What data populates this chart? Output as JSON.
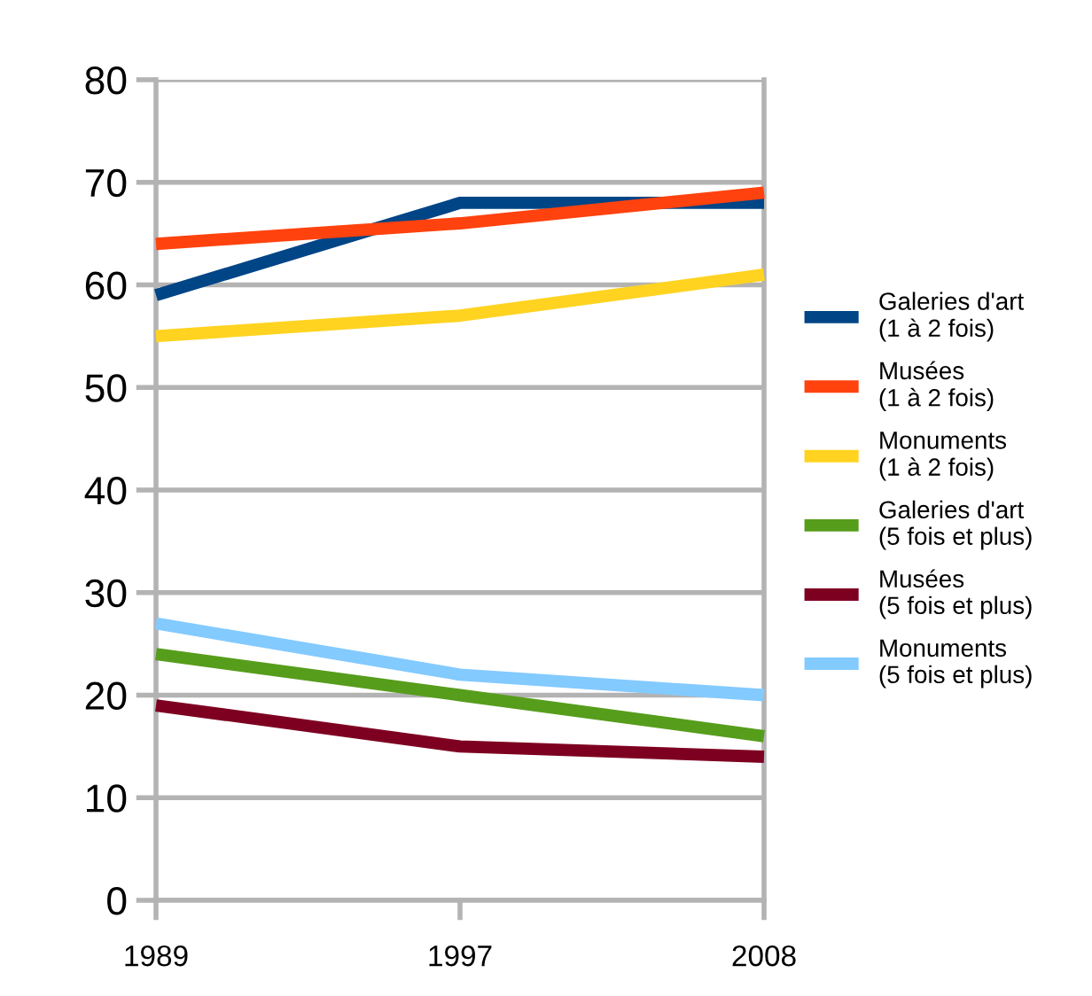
{
  "chart_data": {
    "type": "line",
    "categories": [
      "1989",
      "1997",
      "2008"
    ],
    "series": [
      {
        "name": "Galeries d'art\n(1 à 2 fois)",
        "color": "#004586",
        "values": [
          59,
          68,
          68
        ]
      },
      {
        "name": "Musées\n(1 à 2 fois)",
        "color": "#ff420e",
        "values": [
          64,
          66,
          69
        ]
      },
      {
        "name": "Monuments\n(1 à 2 fois)",
        "color": "#ffd320",
        "values": [
          55,
          57,
          61
        ]
      },
      {
        "name": "Galeries d'art\n(5 fois et plus)",
        "color": "#579d1c",
        "values": [
          24,
          20,
          16
        ]
      },
      {
        "name": "Musées\n(5 fois et plus)",
        "color": "#7e0021",
        "values": [
          19,
          15,
          14
        ]
      },
      {
        "name": "Monuments\n(5 fois et plus)",
        "color": "#83caff",
        "values": [
          27,
          22,
          20
        ]
      }
    ],
    "ylim": [
      0,
      80
    ],
    "yticks": [
      0,
      10,
      20,
      30,
      40,
      50,
      60,
      70,
      80
    ],
    "grid": "y",
    "legend": "right",
    "marker": "none",
    "line_style": "solid"
  }
}
